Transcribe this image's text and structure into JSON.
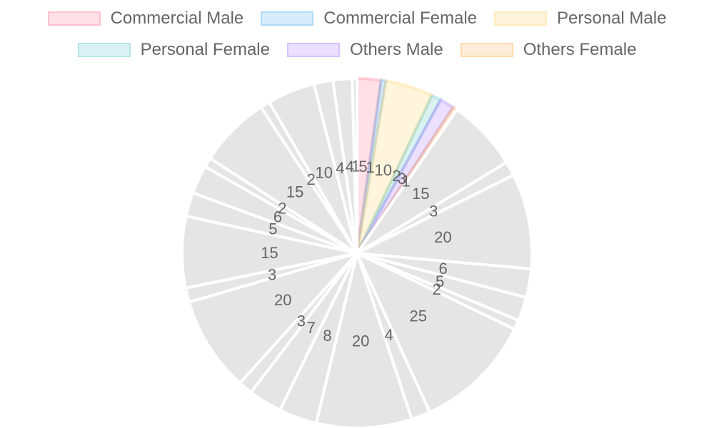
{
  "chart_data": {
    "type": "pie",
    "series": [
      {
        "name": "Commercial Male",
        "color": "#ff6384"
      },
      {
        "name": "Commercial Female",
        "color": "#36a2eb"
      },
      {
        "name": "Personal Male",
        "color": "#ffce56"
      },
      {
        "name": "Personal Female",
        "color": "#4bc0c0"
      },
      {
        "name": "Others Male",
        "color": "#9966ff"
      },
      {
        "name": "Others Female",
        "color": "#ff9f40"
      }
    ],
    "slices": [
      {
        "value": 5,
        "series": 0
      },
      {
        "value": 1,
        "series": 1
      },
      {
        "value": 10,
        "series": 2
      },
      {
        "value": 2,
        "series": 3
      },
      {
        "value": 3,
        "series": 4
      },
      {
        "value": 1,
        "series": 5
      },
      {
        "value": 15
      },
      {
        "value": 3
      },
      {
        "value": 20
      },
      {
        "value": 6
      },
      {
        "value": 5
      },
      {
        "value": 2
      },
      {
        "value": 25
      },
      {
        "value": 4
      },
      {
        "value": 20
      },
      {
        "value": 8
      },
      {
        "value": 7
      },
      {
        "value": 3
      },
      {
        "value": 20
      },
      {
        "value": 3
      },
      {
        "value": 15
      },
      {
        "value": 5
      },
      {
        "value": 6
      },
      {
        "value": 2
      },
      {
        "value": 15
      },
      {
        "value": 2
      },
      {
        "value": 10
      },
      {
        "value": 4
      },
      {
        "value": 4
      },
      {
        "value": 1
      }
    ],
    "inactive_color": "#e5e5e5",
    "legend_position": "top"
  }
}
